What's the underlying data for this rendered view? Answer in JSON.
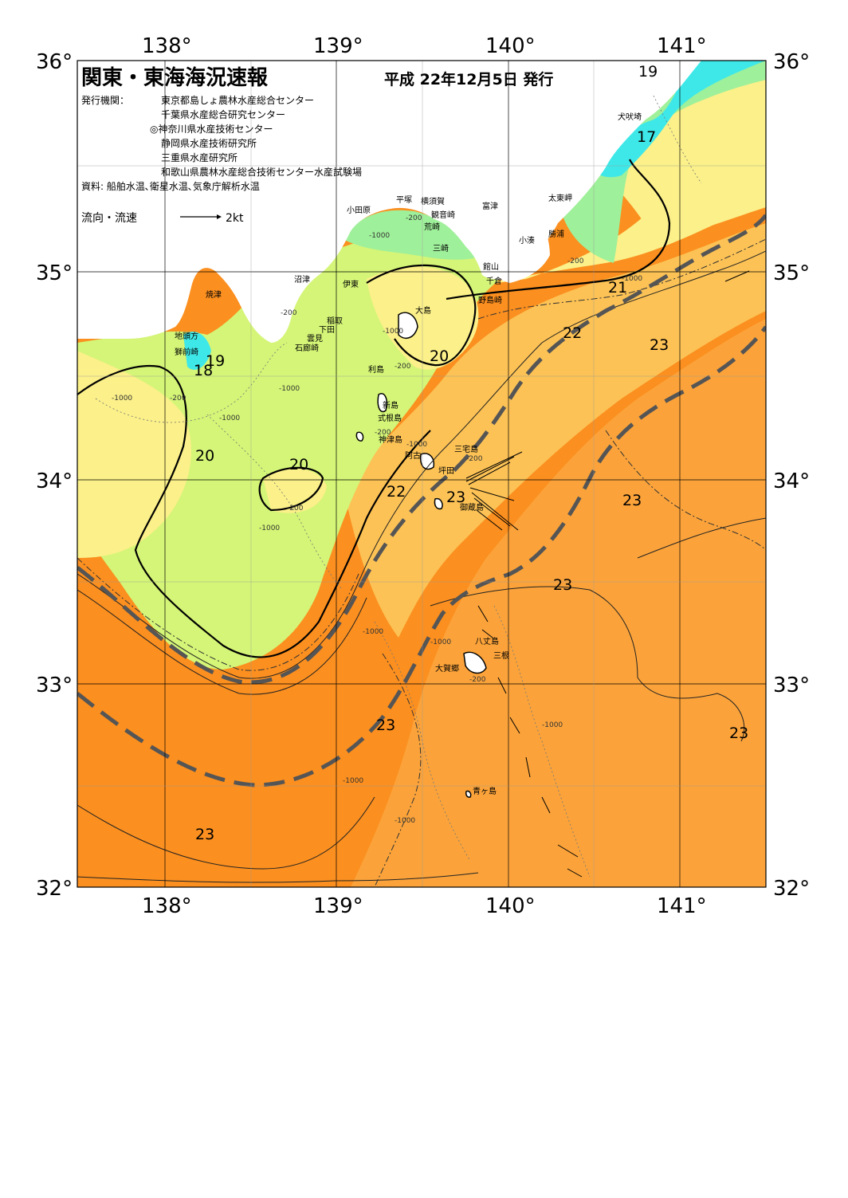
{
  "header": {
    "title": "関東・東海海況速報",
    "issue_date": "平成 22年12月5日 発行",
    "issuer_label": "発行機関：",
    "issuers": [
      "東京都島しょ農林水産総合センター",
      "千葉県水産総合研究センター",
      "◎神奈川県水産技術センター",
      "静岡県水産技術研究所",
      "三重県水産研究所",
      "和歌山県農林水産総合技術センター水産試験場"
    ],
    "sources": "資料: 船舶水温､衛星水温､気象庁解析水温",
    "legend_label": "流向・流速",
    "legend_value": "2kt"
  },
  "axes": {
    "lon_labels": [
      "138°",
      "139°",
      "140°",
      "141°"
    ],
    "lat_labels": [
      "36°",
      "35°",
      "34°",
      "33°",
      "32°"
    ]
  },
  "places": [
    {
      "id": "inubosaki",
      "name": "犬吠埼"
    },
    {
      "id": "taitomisaki",
      "name": "太東岬"
    },
    {
      "id": "katsuura",
      "name": "勝浦"
    },
    {
      "id": "kominato",
      "name": "小湊"
    },
    {
      "id": "futtsu",
      "name": "富津"
    },
    {
      "id": "yokosuka",
      "name": "横須賀"
    },
    {
      "id": "kannonzaki",
      "name": "観音崎"
    },
    {
      "id": "arasaki",
      "name": "荒崎"
    },
    {
      "id": "misaki",
      "name": "三崎"
    },
    {
      "id": "tateyama",
      "name": "館山"
    },
    {
      "id": "chikura",
      "name": "千倉"
    },
    {
      "id": "nojimazaki",
      "name": "野島崎"
    },
    {
      "id": "hiratsuka",
      "name": "平塚"
    },
    {
      "id": "odawara",
      "name": "小田原"
    },
    {
      "id": "numazu",
      "name": "沼津"
    },
    {
      "id": "ito",
      "name": "伊東"
    },
    {
      "id": "inatori",
      "name": "稲取"
    },
    {
      "id": "shimoda",
      "name": "下田"
    },
    {
      "id": "kumomi",
      "name": "雲見"
    },
    {
      "id": "irozaki",
      "name": "石廊崎"
    },
    {
      "id": "yaizu",
      "name": "焼津"
    },
    {
      "id": "jitokata",
      "name": "地頭方"
    },
    {
      "id": "shishimae",
      "name": "獅前崎"
    },
    {
      "id": "oshima",
      "name": "大島"
    },
    {
      "id": "toshima",
      "name": "利島"
    },
    {
      "id": "niijima",
      "name": "新島"
    },
    {
      "id": "shikinejima",
      "name": "式根島"
    },
    {
      "id": "kozushima",
      "name": "神津島"
    },
    {
      "id": "miyakejima",
      "name": "三宅島"
    },
    {
      "id": "ako",
      "name": "阿古"
    },
    {
      "id": "tsubota",
      "name": "坪田"
    },
    {
      "id": "mikurajima",
      "name": "御蔵島"
    },
    {
      "id": "hachijojima",
      "name": "八丈島"
    },
    {
      "id": "mitsune",
      "name": "三根"
    },
    {
      "id": "okago",
      "name": "大賀郷"
    },
    {
      "id": "aogashima",
      "name": "青ヶ島"
    }
  ],
  "isotherm_labels": [
    {
      "id": "t19a",
      "value": "19"
    },
    {
      "id": "t17",
      "value": "17"
    },
    {
      "id": "t21",
      "value": "21"
    },
    {
      "id": "t22a",
      "value": "22"
    },
    {
      "id": "t23a",
      "value": "23"
    },
    {
      "id": "t20a",
      "value": "20"
    },
    {
      "id": "t19b",
      "value": "19"
    },
    {
      "id": "t18",
      "value": "18"
    },
    {
      "id": "t20b",
      "value": "20"
    },
    {
      "id": "t20c",
      "value": "20"
    },
    {
      "id": "t22b",
      "value": "22"
    },
    {
      "id": "t23b",
      "value": "23"
    },
    {
      "id": "t23c",
      "value": "23"
    },
    {
      "id": "t23d",
      "value": "23"
    },
    {
      "id": "t23e",
      "value": "23"
    },
    {
      "id": "t23f",
      "value": "23"
    },
    {
      "id": "t23g",
      "value": "23"
    }
  ],
  "depth_labels": [
    {
      "id": "d1",
      "value": "-200"
    },
    {
      "id": "d2",
      "value": "-1000"
    },
    {
      "id": "d3",
      "value": "-200"
    },
    {
      "id": "d4",
      "value": "-1000"
    },
    {
      "id": "d5",
      "value": "-200"
    },
    {
      "id": "d6",
      "value": "-1000"
    },
    {
      "id": "d7",
      "value": "-200"
    },
    {
      "id": "d8",
      "value": "-1000"
    },
    {
      "id": "d9",
      "value": "-200"
    },
    {
      "id": "d10",
      "value": "-1000"
    },
    {
      "id": "d11",
      "value": "-1000"
    },
    {
      "id": "d12",
      "value": "-1000"
    },
    {
      "id": "d13",
      "value": "-200"
    },
    {
      "id": "d14",
      "value": "-1000"
    },
    {
      "id": "d15",
      "value": "-1000"
    },
    {
      "id": "d16",
      "value": "-1000"
    },
    {
      "id": "d17",
      "value": "-200"
    },
    {
      "id": "d18",
      "value": "-1000"
    },
    {
      "id": "d19",
      "value": "-200"
    },
    {
      "id": "d20",
      "value": "-1000"
    },
    {
      "id": "d21",
      "value": "-200"
    },
    {
      "id": "d22",
      "value": "-1000"
    }
  ],
  "colors": {
    "land": "#ffffff",
    "t17_19": "#3fe8e8",
    "t19_20": "#9ff09a",
    "t20_21": "#d4f577",
    "t21_22": "#fbf089",
    "t22_23": "#fcc255",
    "t23_plus": "#fb8f1f",
    "kuroshio_axis": "#555555"
  }
}
